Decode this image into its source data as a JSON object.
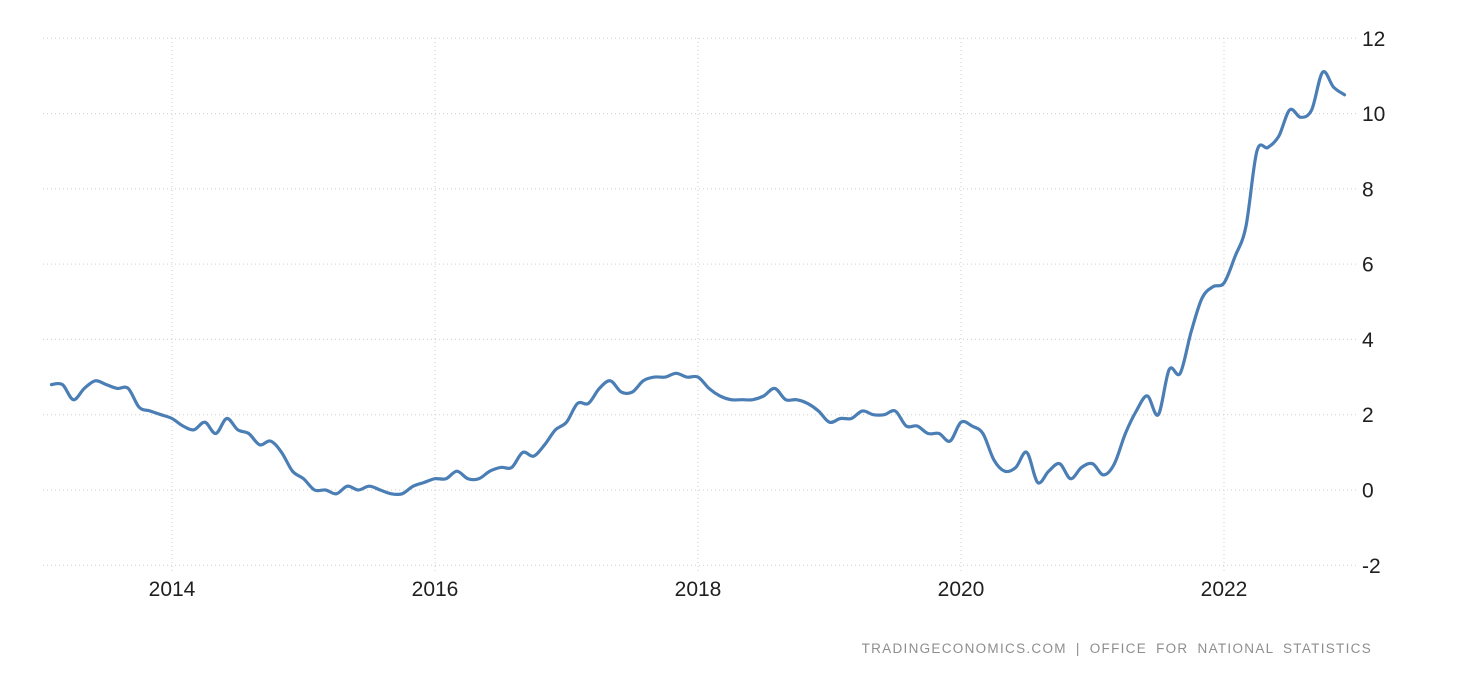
{
  "chart_data": {
    "type": "line",
    "title": "",
    "xlabel": "",
    "ylabel": "",
    "legend": "none",
    "grid": "dotted",
    "background": "#ffffff",
    "gridline_color": "#cfcfcf",
    "tick_label_color": "#202020",
    "line_color": "#4a7eb5",
    "x_tick_labels": [
      "2014",
      "2016",
      "2018",
      "2020",
      "2022"
    ],
    "x_tick_years": [
      2014,
      2016,
      2018,
      2020,
      2022
    ],
    "y_ticks": [
      12,
      10,
      8,
      6,
      4,
      2,
      0,
      -2
    ],
    "ylim": [
      -2,
      12
    ],
    "x_range": [
      "2013-02",
      "2022-12"
    ],
    "frequency": "monthly",
    "series": [
      {
        "start": "2013-02",
        "values": [
          2.8,
          2.8,
          2.4,
          2.7,
          2.9,
          2.8,
          2.7,
          2.7,
          2.2,
          2.1,
          2.0,
          1.9,
          1.7,
          1.6,
          1.8,
          1.5,
          1.9,
          1.6,
          1.5,
          1.2,
          1.3,
          1.0,
          0.5,
          0.3,
          0.0,
          0.0,
          -0.1,
          0.1,
          0.0,
          0.1,
          0.0,
          -0.1,
          -0.1,
          0.1,
          0.2,
          0.3,
          0.3,
          0.5,
          0.3,
          0.3,
          0.5,
          0.6,
          0.6,
          1.0,
          0.9,
          1.2,
          1.6,
          1.8,
          2.3,
          2.3,
          2.7,
          2.9,
          2.6,
          2.6,
          2.9,
          3.0,
          3.0,
          3.1,
          3.0,
          3.0,
          2.7,
          2.5,
          2.4,
          2.4,
          2.4,
          2.5,
          2.7,
          2.4,
          2.4,
          2.3,
          2.1,
          1.8,
          1.9,
          1.9,
          2.1,
          2.0,
          2.0,
          2.1,
          1.7,
          1.7,
          1.5,
          1.5,
          1.3,
          1.8,
          1.7,
          1.5,
          0.8,
          0.5,
          0.6,
          1.0,
          0.2,
          0.5,
          0.7,
          0.3,
          0.6,
          0.7,
          0.4,
          0.7,
          1.5,
          2.1,
          2.5,
          2.0,
          3.2,
          3.1,
          4.2,
          5.1,
          5.4,
          5.5,
          6.2,
          7.0,
          9.0,
          9.1,
          9.4,
          10.1,
          9.9,
          10.1,
          11.1,
          10.7,
          10.5
        ]
      }
    ]
  },
  "footer": {
    "attribution": "TRADINGECONOMICS.COM | OFFICE FOR NATIONAL STATISTICS"
  }
}
